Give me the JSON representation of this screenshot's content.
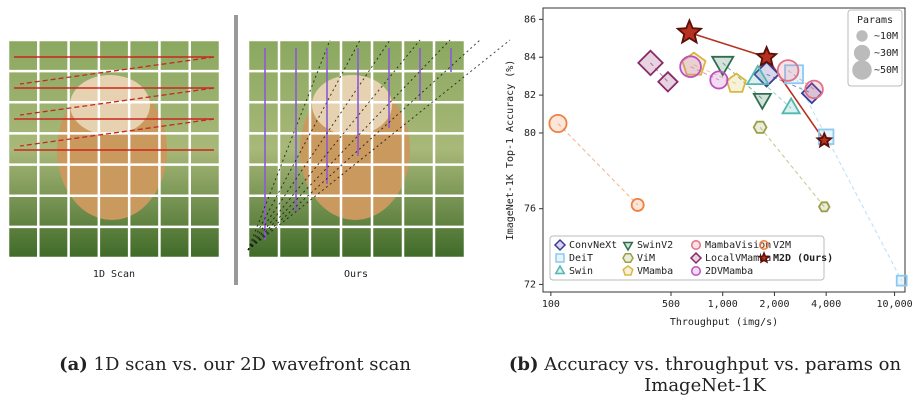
{
  "panel_a": {
    "left_label": "1D Scan",
    "right_label": "Ours"
  },
  "captions": [
    {
      "tag": "(a)",
      "text": "1D scan vs. our 2D wavefront scan"
    },
    {
      "tag": "(b)",
      "text": "Accuracy vs. throughput vs. params on ImageNet-1K"
    }
  ],
  "chart_data": {
    "type": "scatter",
    "xlabel": "Throughput (img/s)",
    "ylabel": "ImageNet-1K Top-1 Accuracy (%)",
    "xscale": "log",
    "xlim": [
      90,
      11500
    ],
    "ylim": [
      71.6,
      86.6
    ],
    "xticks": [
      100,
      500,
      {
        "value": 1000,
        "label": "1,000"
      },
      {
        "value": 2000,
        "label": "2,000"
      },
      {
        "value": 4000,
        "label": "4,000"
      },
      {
        "value": 10000,
        "label": "10,000"
      }
    ],
    "yticks": [
      72,
      76,
      80,
      82,
      84,
      86
    ],
    "size_legend_title": "Params",
    "size_legend": [
      {
        "value": 10,
        "label": "~10M"
      },
      {
        "value": 30,
        "label": "~30M"
      },
      {
        "value": 50,
        "label": "~50M"
      }
    ],
    "series": [
      {
        "name": "ConvNeXt",
        "color": "#3b3b98",
        "marker": "diamond",
        "x": [
          1800,
          3300
        ],
        "values": [
          83.1,
          82.1
        ],
        "sizes": [
          50,
          28
        ]
      },
      {
        "name": "DeiT",
        "color": "#8ec9f0",
        "marker": "square",
        "x": [
          2600,
          4000,
          11000
        ],
        "values": [
          83.1,
          79.8,
          72.2
        ],
        "sizes": [
          40,
          22,
          6
        ]
      },
      {
        "name": "Swin",
        "color": "#50b8b0",
        "marker": "triangle",
        "x": [
          1600,
          2500
        ],
        "values": [
          82.9,
          81.3
        ],
        "sizes": [
          50,
          28
        ]
      },
      {
        "name": "SwinV2",
        "color": "#2e6e4e",
        "marker": "triangle-down",
        "x": [
          1000,
          1700
        ],
        "values": [
          83.7,
          81.8
        ],
        "sizes": [
          50,
          28
        ]
      },
      {
        "name": "ViM",
        "color": "#9aa04a",
        "marker": "hexagon",
        "x": [
          1650,
          3900
        ],
        "values": [
          80.3,
          76.1
        ],
        "sizes": [
          7,
          3
        ]
      },
      {
        "name": "VMamba",
        "color": "#d8b840",
        "marker": "pentagon",
        "x": [
          680,
          1200
        ],
        "values": [
          83.6,
          82.6
        ],
        "sizes": [
          50,
          30
        ]
      },
      {
        "name": "MambaVision",
        "color": "#e07088",
        "marker": "circle",
        "x": [
          2400,
          3400
        ],
        "values": [
          83.3,
          82.3
        ],
        "sizes": [
          50,
          32
        ]
      },
      {
        "name": "LocalVMamba",
        "color": "#8a2a6a",
        "marker": "diamond",
        "x": [
          380,
          480
        ],
        "values": [
          83.7,
          82.7
        ],
        "sizes": [
          50,
          26
        ]
      },
      {
        "name": "2DVMamba",
        "color": "#c050c0",
        "marker": "circle",
        "x": [
          650,
          950
        ],
        "values": [
          83.5,
          82.8
        ],
        "sizes": [
          50,
          30
        ]
      },
      {
        "name": "V2M",
        "color": "#f08040",
        "marker": "circle",
        "x": [
          110,
          320
        ],
        "values": [
          80.5,
          76.2
        ],
        "sizes": [
          30,
          10
        ]
      },
      {
        "name": "M2D (Ours)",
        "color": "#b83020",
        "marker": "star",
        "solid": true,
        "x": [
          640,
          1800,
          3900
        ],
        "values": [
          85.3,
          84.0,
          79.6
        ],
        "sizes": [
          50,
          30,
          10
        ]
      }
    ]
  }
}
